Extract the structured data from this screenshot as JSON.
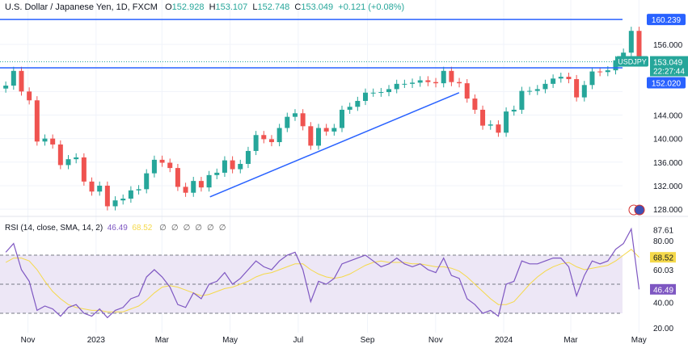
{
  "header": {
    "title": "U.S. Dollar / Japanese Yen, 1D, FXCM",
    "open_label": "O",
    "open": "152.928",
    "high_label": "H",
    "high": "153.107",
    "low_label": "L",
    "low": "152.748",
    "close_label": "C",
    "close": "153.049",
    "change": "+0.121 (+0.08%)"
  },
  "rsi_header": {
    "title": "RSI (14, close, SMA, 14, 2)",
    "rsi": "46.49",
    "ma": "68.52",
    "na": [
      "∅",
      "∅",
      "∅",
      "∅",
      "∅",
      "∅"
    ]
  },
  "colors": {
    "up": "#26a69a",
    "down": "#ef5350",
    "line": "#2962ff",
    "rsi": "#7e57c2",
    "rsi_ma": "#f5d94a",
    "band": "#ede7f6"
  },
  "chart_data": [
    {
      "type": "candlestick",
      "symbol": "USDJPY",
      "interval": "1D",
      "ylim": [
        126,
        162
      ],
      "y_ticks": [
        128,
        132,
        136,
        140,
        144,
        148,
        152,
        156
      ],
      "x_ticks": [
        "Nov",
        "2023",
        "Mar",
        "May",
        "Jul",
        "Sep",
        "Nov",
        "2024",
        "Mar",
        "May"
      ],
      "x_tick_dates": [
        "2022-11-01",
        "2023-01-01",
        "2023-03-01",
        "2023-05-01",
        "2023-07-01",
        "2023-09-01",
        "2023-11-01",
        "2024-01-01",
        "2024-03-01",
        "2024-05-01"
      ],
      "last_price": {
        "symbol": "USDJPY",
        "price": "153.049",
        "countdown": "22:27:44"
      },
      "hlines": [
        {
          "value": 160.239,
          "label": "160.239"
        },
        {
          "value": 152.02,
          "label": "152.020"
        }
      ],
      "trendline": [
        [
          "2023-04-13",
          130.1
        ],
        [
          "2023-11-22",
          147.8
        ]
      ],
      "dates": [
        "2022-10-10",
        "2022-10-17",
        "2022-10-24",
        "2022-10-31",
        "2022-11-07",
        "2022-11-14",
        "2022-11-21",
        "2022-11-28",
        "2022-12-05",
        "2022-12-12",
        "2022-12-19",
        "2022-12-26",
        "2023-01-02",
        "2023-01-09",
        "2023-01-16",
        "2023-01-23",
        "2023-01-30",
        "2023-02-06",
        "2023-02-13",
        "2023-02-20",
        "2023-02-27",
        "2023-03-06",
        "2023-03-13",
        "2023-03-20",
        "2023-03-27",
        "2023-04-03",
        "2023-04-10",
        "2023-04-17",
        "2023-04-24",
        "2023-05-01",
        "2023-05-08",
        "2023-05-15",
        "2023-05-22",
        "2023-05-29",
        "2023-06-05",
        "2023-06-12",
        "2023-06-19",
        "2023-06-26",
        "2023-07-03",
        "2023-07-10",
        "2023-07-17",
        "2023-07-24",
        "2023-07-31",
        "2023-08-07",
        "2023-08-14",
        "2023-08-21",
        "2023-08-28",
        "2023-09-04",
        "2023-09-11",
        "2023-09-18",
        "2023-09-25",
        "2023-10-02",
        "2023-10-09",
        "2023-10-16",
        "2023-10-23",
        "2023-10-30",
        "2023-11-06",
        "2023-11-13",
        "2023-11-20",
        "2023-11-27",
        "2023-12-04",
        "2023-12-11",
        "2023-12-18",
        "2023-12-25",
        "2024-01-01",
        "2024-01-08",
        "2024-01-15",
        "2024-01-22",
        "2024-01-29",
        "2024-02-05",
        "2024-02-12",
        "2024-02-19",
        "2024-02-26",
        "2024-03-04",
        "2024-03-11",
        "2024-03-18",
        "2024-03-25",
        "2024-04-01",
        "2024-04-08",
        "2024-04-15",
        "2024-04-22",
        "2024-04-29"
      ],
      "close": [
        149.0,
        151.5,
        148.0,
        146.5,
        139.5,
        140.0,
        139.0,
        135.5,
        136.5,
        136.8,
        132.7,
        131.0,
        132.0,
        128.5,
        129.5,
        129.8,
        131.2,
        131.4,
        134.1,
        136.4,
        135.9,
        135.0,
        131.8,
        130.8,
        132.8,
        131.7,
        133.8,
        134.2,
        136.3,
        134.8,
        135.7,
        137.9,
        140.6,
        139.9,
        139.4,
        141.8,
        143.7,
        144.3,
        142.1,
        138.8,
        141.8,
        141.2,
        141.8,
        144.9,
        145.4,
        146.4,
        147.8,
        147.8,
        147.9,
        148.4,
        149.3,
        149.3,
        149.5,
        149.9,
        149.6,
        149.4,
        151.5,
        149.6,
        149.4,
        146.8,
        144.9,
        142.2,
        142.4,
        141.0,
        144.6,
        144.9,
        148.1,
        148.1,
        148.4,
        149.3,
        150.2,
        150.5,
        150.1,
        147.0,
        149.1,
        151.4,
        151.3,
        151.6,
        153.3,
        154.6,
        158.3,
        153.0
      ],
      "open_first": 148.5,
      "rsi": {
        "ylim": [
          15,
          92
        ],
        "y_ticks": [
          "87.61",
          "80.00",
          "60.03",
          "40.00",
          "20.00"
        ],
        "levels": [
          70,
          50,
          30
        ],
        "last": "46.49",
        "ma_last": "68.52",
        "values": [
          72,
          78,
          60,
          52,
          32,
          35,
          33,
          28,
          34,
          36,
          30,
          28,
          33,
          27,
          32,
          34,
          40,
          42,
          55,
          60,
          55,
          48,
          36,
          34,
          44,
          40,
          50,
          52,
          58,
          50,
          54,
          60,
          66,
          62,
          60,
          66,
          70,
          72,
          60,
          38,
          52,
          50,
          54,
          64,
          66,
          68,
          70,
          66,
          62,
          64,
          68,
          64,
          62,
          64,
          60,
          58,
          68,
          56,
          54,
          40,
          36,
          30,
          32,
          28,
          50,
          52,
          66,
          64,
          64,
          66,
          68,
          68,
          62,
          42,
          56,
          66,
          64,
          66,
          74,
          78,
          88,
          46.49
        ],
        "ma": [
          65,
          68,
          68,
          66,
          60,
          52,
          45,
          40,
          36,
          34,
          33,
          32,
          32,
          31,
          31,
          31,
          33,
          35,
          39,
          44,
          48,
          49,
          48,
          46,
          44,
          42,
          43,
          45,
          47,
          48,
          50,
          52,
          55,
          57,
          58,
          60,
          62,
          64,
          64,
          60,
          57,
          55,
          54,
          55,
          57,
          60,
          63,
          65,
          66,
          65,
          65,
          65,
          64,
          64,
          63,
          62,
          62,
          61,
          59,
          55,
          50,
          45,
          40,
          36,
          36,
          38,
          44,
          50,
          55,
          59,
          62,
          64,
          65,
          62,
          60,
          61,
          62,
          63,
          66,
          70,
          74,
          68.52
        ]
      }
    }
  ]
}
